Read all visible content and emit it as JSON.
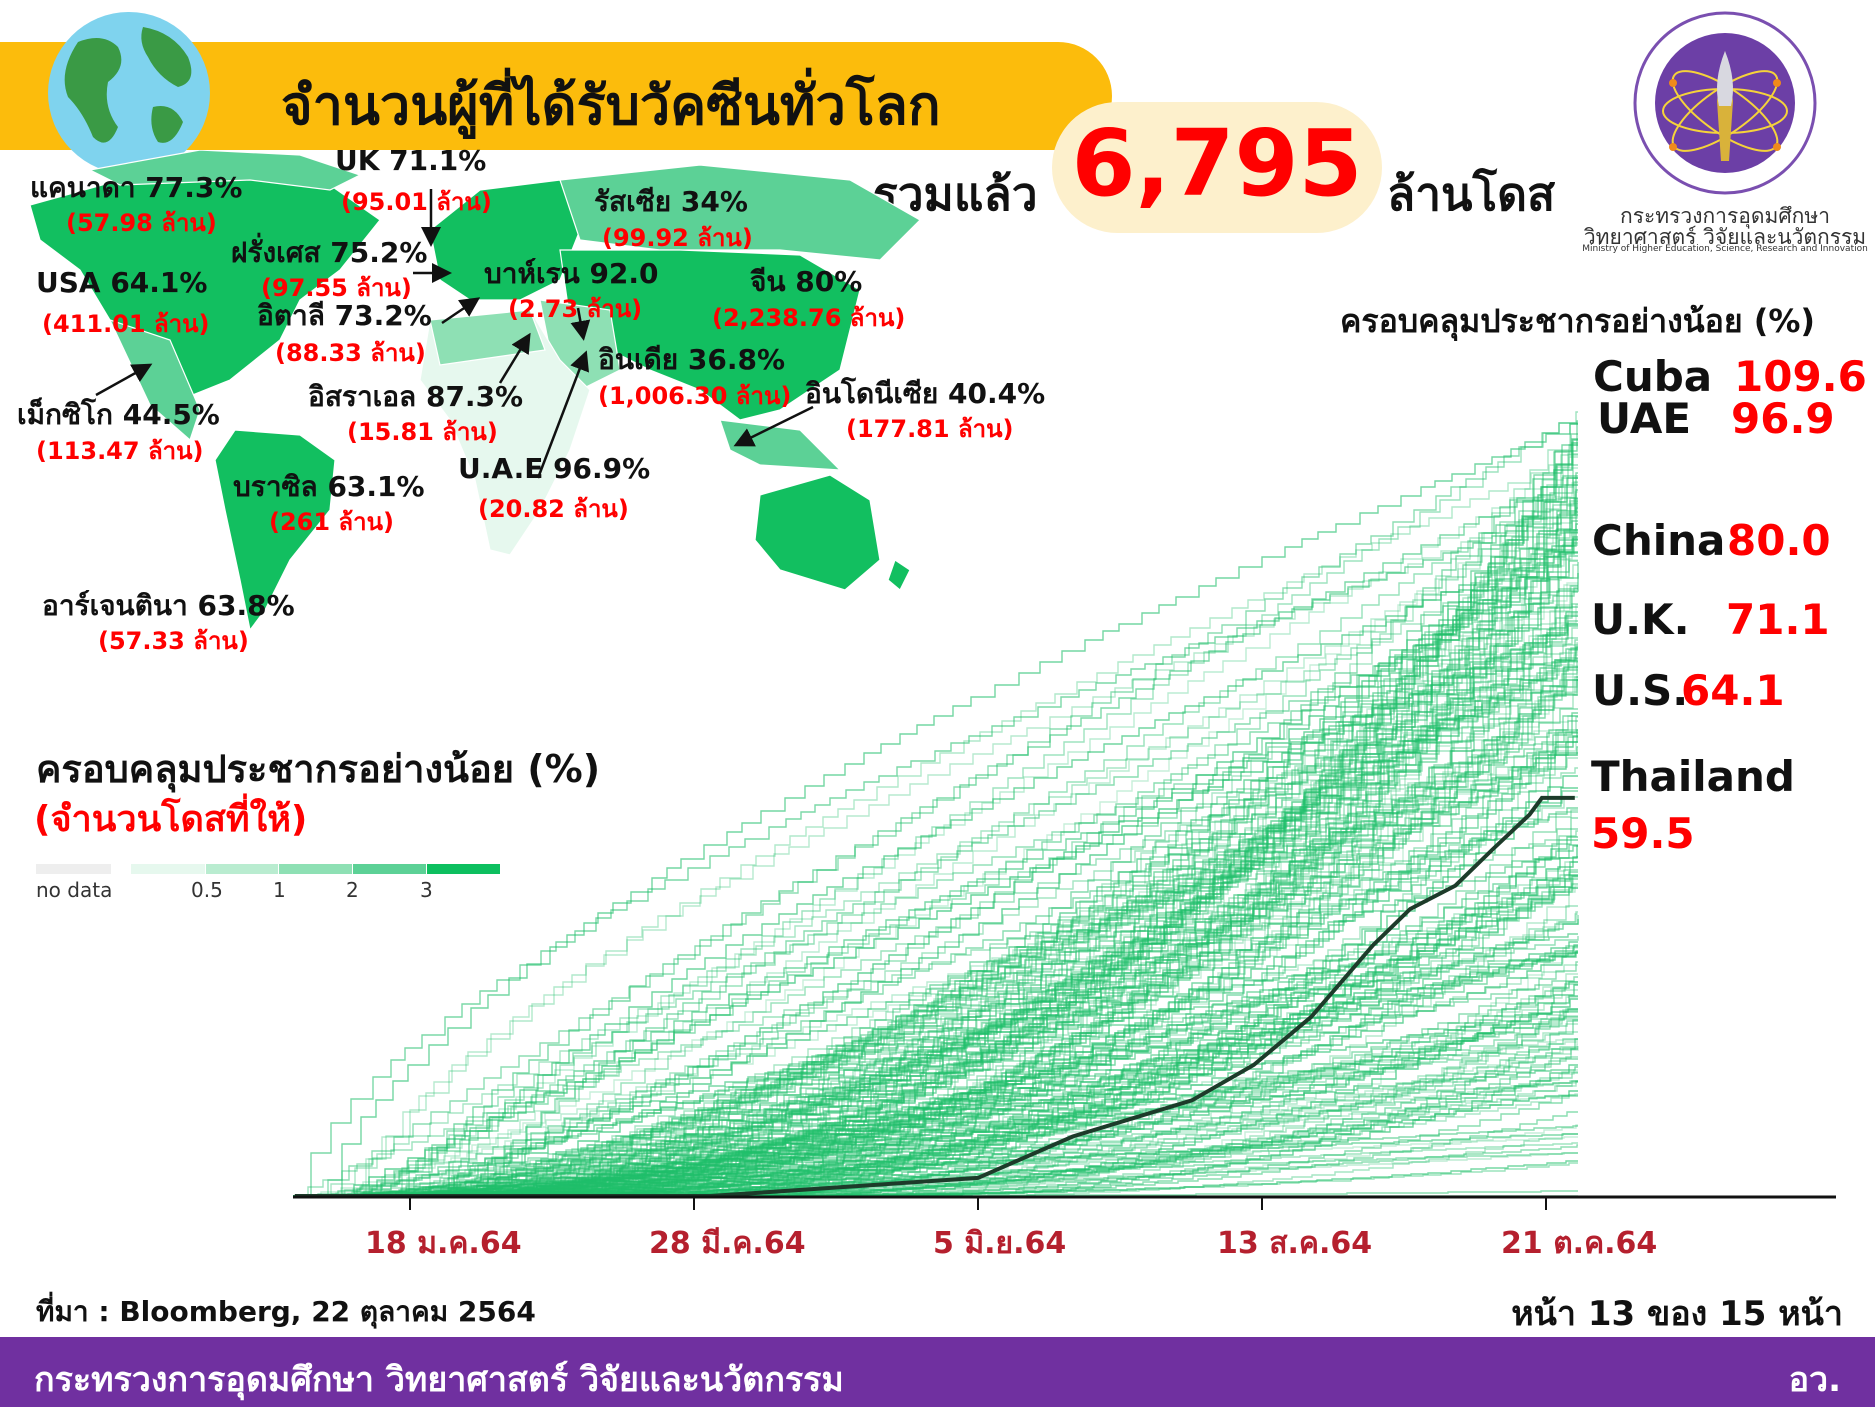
{
  "header": {
    "title": "จำนวนผู้ที่ได้รับวัคซีนทั่วโลก",
    "total_prefix": "รวมแล้ว",
    "total_value": "6,795",
    "total_suffix": "ล้านโดส",
    "banner_color": "#fcbc0c",
    "accent_red": "#ff0000"
  },
  "logo": {
    "ring_text_th": "กระทรวงการอุดมศึกษา วิทยาศาสตร์ วิจัยและนวัตกรรม",
    "ring_text_en": "Ministry of Higher Education, Science, Research and Innovation",
    "line1": "กระทรวงการอุดมศึกษา",
    "line2": "วิทยาศาสตร์ วิจัยและนวัตกรรม",
    "line3": "Ministry of Higher Education, Science, Research and Innovation"
  },
  "map": {
    "labels": [
      {
        "name": "แคนาดา 77.3%",
        "doses": "(57.98 ล้าน)"
      },
      {
        "name": "UK 71.1%",
        "doses": "(95.01 ล้าน)"
      },
      {
        "name": "รัสเซีย 34%",
        "doses": "(99.92 ล้าน)"
      },
      {
        "name": "ฝรั่งเศส 75.2%",
        "doses": "(97.55 ล้าน)"
      },
      {
        "name": "USA 64.1%",
        "doses": "(411.01 ล้าน)"
      },
      {
        "name": "บาห์เรน 92.0",
        "doses": "(2.73 ล้าน)"
      },
      {
        "name": "จีน 80%",
        "doses": "(2,238.76 ล้าน)"
      },
      {
        "name": "อิตาลี 73.2%",
        "doses": "(88.33 ล้าน)"
      },
      {
        "name": "อินเดีย 36.8%",
        "doses": "(1,006.30 ล้าน)"
      },
      {
        "name": "อิสราเอล 87.3%",
        "doses": "(15.81 ล้าน)"
      },
      {
        "name": "อินโดนีเซีย 40.4%",
        "doses": "(177.81 ล้าน)"
      },
      {
        "name": "เม็กซิโก 44.5%",
        "doses": "(113.47 ล้าน)"
      },
      {
        "name": "บราซิล 63.1%",
        "doses": "(261 ล้าน)"
      },
      {
        "name": "U.A.E 96.9%",
        "doses": "(20.82 ล้าน)"
      },
      {
        "name": "อาร์เจนตินา 63.8%",
        "doses": "(57.33 ล้าน)"
      }
    ],
    "legend": {
      "title": "ครอบคลุมประชากรอย่างน้อย (%)",
      "subtitle": "(จำนวนโดสที่ให้)",
      "no_data_label": "no data",
      "no_data_color": "#eeeeee",
      "bins": [
        "0.5",
        "1",
        "2",
        "3"
      ],
      "colors": [
        "#e6f8ee",
        "#b9ecd0",
        "#8ee0b4",
        "#5cd196",
        "#0dbf5f"
      ]
    }
  },
  "chart_data": {
    "type": "line",
    "title": "ครอบคลุมประชากรอย่างน้อย (%)",
    "x_ticks": [
      "18 ม.ค.64",
      "28 มี.ค.64",
      "5 มิ.ย.64",
      "13 ส.ค.64",
      "21 ต.ค.64"
    ],
    "ylim": [
      0,
      125
    ],
    "grid": false,
    "line_color": "#1fbf6a",
    "highlight_color": "#1d3b2a",
    "highlighted_series": {
      "name": "Thailand",
      "x": [
        "2020-12-21",
        "2021-04-01",
        "2021-06-05",
        "2021-06-28",
        "2021-07-27",
        "2021-08-11",
        "2021-08-25",
        "2021-09-09",
        "2021-09-18",
        "2021-09-29",
        "2021-10-08",
        "2021-10-17",
        "2021-10-20",
        "2021-10-28"
      ],
      "y": [
        0,
        0,
        2.7,
        8.9,
        14.3,
        19.6,
        26.8,
        37.5,
        42.9,
        46.4,
        51.8,
        57.0,
        59.5,
        59.5
      ]
    },
    "callouts": [
      {
        "country": "Cuba",
        "value": "109.6"
      },
      {
        "country": "UAE",
        "value": "96.9"
      },
      {
        "country": "China",
        "value": "80.0"
      },
      {
        "country": "U.K.",
        "value": "71.1"
      },
      {
        "country": "U.S.",
        "value": "64.1"
      },
      {
        "country": "Thailand",
        "value": "59.5"
      }
    ]
  },
  "footer": {
    "source": "ที่มา : Bloomberg, 22 ตุลาคม 2564",
    "page": "หน้า 13 ของ 15 หน้า",
    "org": "กระทรวงการอุดมศึกษา วิทยาศาสตร์ วิจัยและนวัตกรรม",
    "org_short": "อว.",
    "bar_color": "#7030a0"
  }
}
